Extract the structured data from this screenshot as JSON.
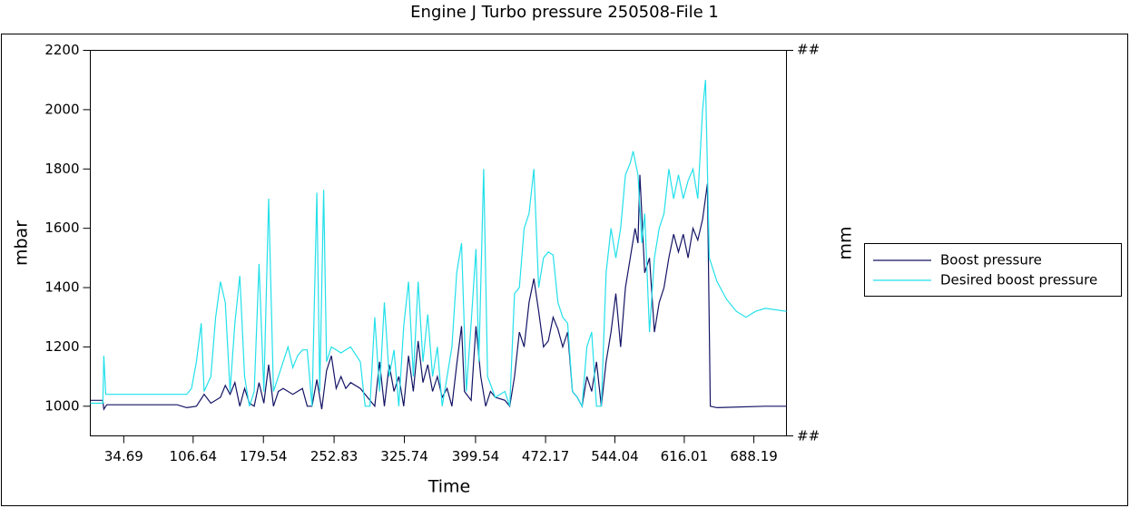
{
  "chart_data": {
    "type": "line",
    "title": "Engine J Turbo pressure 250508-File 1",
    "x_label": "Time",
    "y_label": "mbar",
    "y2_label": "mm",
    "y2_tick_labels": [
      "##",
      "##"
    ],
    "xlim": [
      0,
      722
    ],
    "xticks": [
      34.69,
      106.64,
      179.54,
      252.83,
      325.74,
      399.54,
      472.17,
      544.04,
      616.01,
      688.19
    ],
    "ylim": [
      900,
      2200
    ],
    "yticks": [
      1000,
      1200,
      1400,
      1600,
      1800,
      2000,
      2200
    ],
    "legend": "right",
    "series": [
      {
        "name": "Boost pressure",
        "color": "#141466",
        "x": [
          0,
          13,
          14,
          17,
          90,
          100,
          110,
          118,
          125,
          135,
          140,
          145,
          150,
          155,
          160,
          165,
          170,
          175,
          180,
          185,
          190,
          195,
          200,
          210,
          220,
          225,
          230,
          235,
          240,
          245,
          250,
          255,
          260,
          265,
          270,
          280,
          290,
          295,
          300,
          305,
          310,
          315,
          320,
          325,
          330,
          335,
          340,
          345,
          350,
          355,
          360,
          365,
          370,
          375,
          380,
          385,
          388,
          395,
          400,
          405,
          410,
          415,
          420,
          430,
          435,
          440,
          445,
          450,
          455,
          460,
          465,
          470,
          475,
          480,
          485,
          490,
          495,
          500,
          505,
          510,
          515,
          520,
          525,
          530,
          535,
          540,
          545,
          550,
          555,
          560,
          565,
          568,
          570,
          575,
          580,
          585,
          590,
          595,
          600,
          605,
          610,
          615,
          620,
          625,
          630,
          635,
          640,
          643,
          650,
          700,
          722
        ],
        "values": [
          1020,
          1020,
          990,
          1005,
          1005,
          995,
          1000,
          1040,
          1010,
          1030,
          1070,
          1040,
          1080,
          1000,
          1060,
          1010,
          1000,
          1080,
          1010,
          1140,
          1000,
          1050,
          1060,
          1040,
          1060,
          1000,
          1000,
          1090,
          990,
          1120,
          1170,
          1060,
          1100,
          1060,
          1080,
          1060,
          1020,
          1000,
          1150,
          1000,
          1140,
          1050,
          1100,
          1000,
          1170,
          1050,
          1220,
          1080,
          1140,
          1050,
          1100,
          1030,
          1060,
          1000,
          1140,
          1270,
          1050,
          1020,
          1270,
          1100,
          1000,
          1050,
          1030,
          1020,
          1000,
          1100,
          1250,
          1200,
          1350,
          1430,
          1320,
          1200,
          1220,
          1300,
          1260,
          1200,
          1250,
          1050,
          1030,
          1000,
          1100,
          1050,
          1150,
          1000,
          1150,
          1250,
          1380,
          1200,
          1400,
          1500,
          1600,
          1550,
          1780,
          1450,
          1500,
          1250,
          1350,
          1400,
          1500,
          1580,
          1520,
          1580,
          1500,
          1600,
          1560,
          1630,
          1750,
          1000,
          995,
          1000,
          1000
        ]
      },
      {
        "name": "Desired boost pressure",
        "color": "#22e0ea",
        "x": [
          0,
          13,
          14,
          16,
          100,
          105,
          110,
          115,
          118,
          125,
          130,
          135,
          140,
          145,
          150,
          155,
          160,
          165,
          170,
          175,
          180,
          185,
          190,
          195,
          200,
          205,
          210,
          215,
          220,
          225,
          230,
          235,
          238,
          242,
          245,
          250,
          260,
          270,
          280,
          285,
          290,
          295,
          300,
          305,
          310,
          315,
          320,
          325,
          330,
          335,
          340,
          345,
          350,
          355,
          360,
          365,
          370,
          375,
          380,
          385,
          390,
          395,
          400,
          403,
          408,
          412,
          420,
          430,
          435,
          440,
          445,
          450,
          455,
          460,
          465,
          470,
          475,
          480,
          485,
          490,
          495,
          500,
          505,
          510,
          515,
          520,
          525,
          530,
          535,
          540,
          545,
          550,
          555,
          560,
          563,
          568,
          572,
          575,
          580,
          585,
          590,
          595,
          600,
          605,
          610,
          615,
          620,
          625,
          630,
          635,
          638,
          642,
          650,
          660,
          670,
          680,
          690,
          700,
          722
        ],
        "values": [
          1010,
          1010,
          1170,
          1040,
          1040,
          1060,
          1150,
          1280,
          1050,
          1100,
          1300,
          1420,
          1350,
          1050,
          1280,
          1440,
          1100,
          1000,
          1050,
          1480,
          1050,
          1700,
          1050,
          1100,
          1150,
          1200,
          1130,
          1170,
          1190,
          1190,
          1000,
          1720,
          1050,
          1730,
          1150,
          1200,
          1180,
          1200,
          1150,
          1000,
          1000,
          1300,
          1050,
          1350,
          1100,
          1190,
          1000,
          1270,
          1420,
          1100,
          1420,
          1150,
          1310,
          1100,
          1200,
          1000,
          1100,
          1200,
          1450,
          1550,
          1050,
          1280,
          1530,
          1150,
          1800,
          1100,
          1030,
          1050,
          1000,
          1380,
          1400,
          1600,
          1650,
          1800,
          1400,
          1500,
          1520,
          1510,
          1350,
          1300,
          1280,
          1050,
          1030,
          1000,
          1200,
          1250,
          1000,
          1000,
          1450,
          1600,
          1500,
          1600,
          1780,
          1820,
          1860,
          1780,
          1550,
          1650,
          1250,
          1500,
          1600,
          1650,
          1800,
          1700,
          1780,
          1700,
          1760,
          1800,
          1700,
          2000,
          2100,
          1500,
          1420,
          1360,
          1320,
          1300,
          1320,
          1330,
          1320
        ]
      }
    ]
  }
}
